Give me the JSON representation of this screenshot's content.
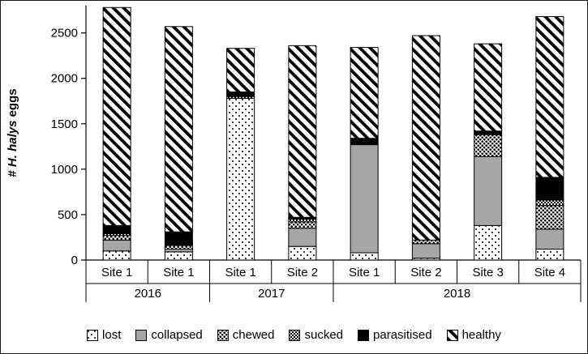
{
  "chart_data": {
    "type": "bar",
    "stacked": true,
    "title": "",
    "ylabel": "# H. halys eggs",
    "ylabel_parts": {
      "prefix": "# ",
      "italic": "H. halys",
      "suffix": " eggs"
    },
    "ylim": [
      0,
      2800
    ],
    "yticks": [
      0,
      500,
      1000,
      1500,
      2000,
      2500
    ],
    "grid": false,
    "legend_position": "bottom",
    "groups": [
      {
        "label": "2016",
        "sites": [
          "Site 1",
          "Site 1"
        ]
      },
      {
        "label": "2017",
        "sites": [
          "Site 1",
          "Site 2"
        ]
      },
      {
        "label": "2018",
        "sites": [
          "Site 1",
          "Site 2",
          "Site 3",
          "Site 4"
        ]
      }
    ],
    "categories": [
      "2016 Site 1",
      "2016 Site 1",
      "2017 Site 1",
      "2017 Site 2",
      "2018 Site 1",
      "2018 Site 2",
      "2018 Site 3",
      "2018 Site 4"
    ],
    "series": [
      {
        "name": "lost",
        "pattern": "dots",
        "values": [
          100,
          90,
          1780,
          150,
          80,
          20,
          380,
          120
        ]
      },
      {
        "name": "collapsed",
        "pattern": "gray",
        "values": [
          120,
          30,
          0,
          200,
          1190,
          160,
          760,
          220
        ]
      },
      {
        "name": "chewed",
        "pattern": "dense-dots",
        "values": [
          50,
          40,
          0,
          70,
          0,
          40,
          240,
          260
        ]
      },
      {
        "name": "sucked",
        "pattern": "check",
        "values": [
          20,
          0,
          20,
          30,
          0,
          0,
          0,
          60
        ]
      },
      {
        "name": "parasitised",
        "pattern": "black",
        "values": [
          90,
          150,
          50,
          20,
          70,
          0,
          40,
          250
        ]
      },
      {
        "name": "healthy",
        "pattern": "hatch",
        "values": [
          2400,
          2260,
          480,
          1890,
          1000,
          2250,
          960,
          1770
        ]
      }
    ],
    "colors": {
      "bar_outline": "#000000",
      "collapsed_fill": "#a6a6a6",
      "background": "#ffffff"
    }
  }
}
